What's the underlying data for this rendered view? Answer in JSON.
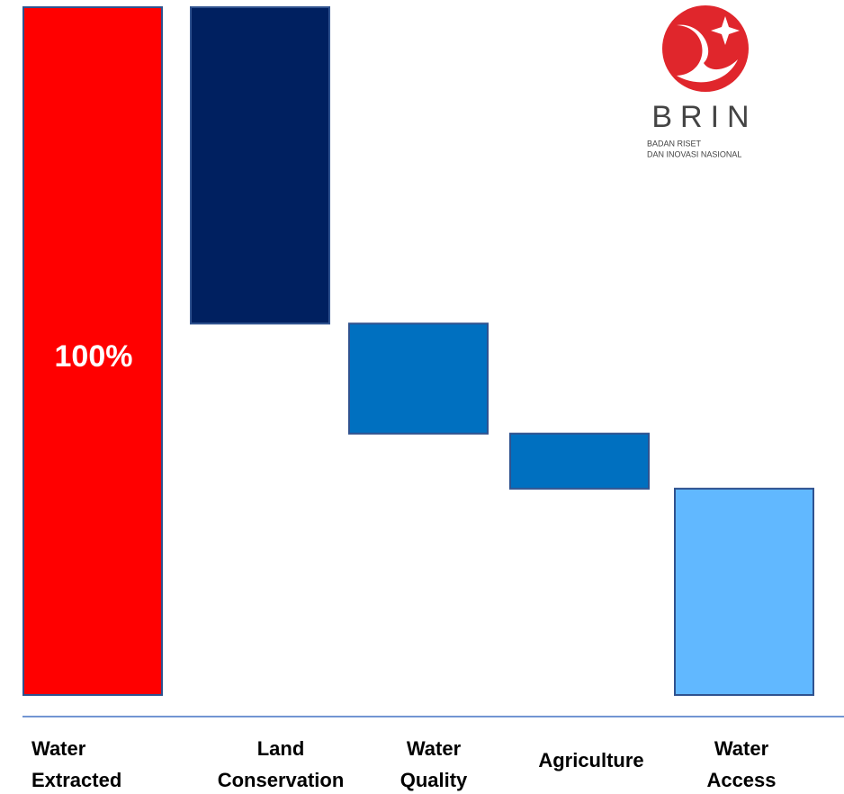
{
  "chart_data": {
    "type": "waterfall",
    "categories": [
      [
        "Water",
        "Extracted"
      ],
      [
        "Land",
        "Conservation"
      ],
      [
        "Water",
        "Quality"
      ],
      [
        "Agriculture"
      ],
      [
        "Water",
        "Access"
      ]
    ],
    "values": [
      100,
      46,
      16,
      8,
      30
    ],
    "value_labels": [
      "100%",
      null,
      null,
      null,
      null
    ],
    "colors": [
      "#ff0000",
      "#002060",
      "#0070c0",
      "#0070c0",
      "#61b8ff"
    ],
    "ylim": [
      0,
      100
    ]
  },
  "logo": {
    "name": "BRIN",
    "tagline": [
      "BADAN RISET",
      "DAN INOVASI NASIONAL"
    ]
  }
}
